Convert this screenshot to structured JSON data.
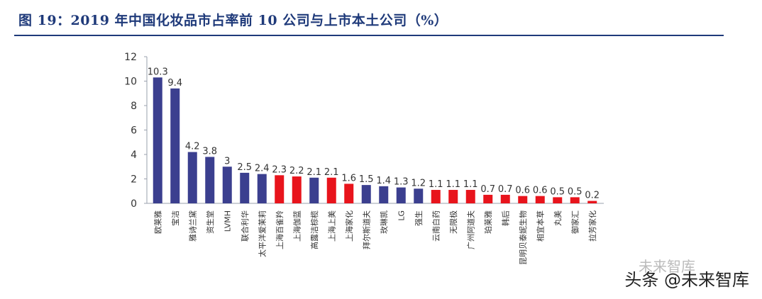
{
  "title": "图 19：2019 年中国化妆品市占率前 10 公司与上市本土公司（%）",
  "watermark": {
    "primary": "头条 @未来智库",
    "secondary": "未来智库"
  },
  "colors": {
    "navy": "#3b3f8f",
    "red": "#e8141c",
    "axis": "#9aa0ad",
    "text": "#333333"
  },
  "chart_data": {
    "type": "bar",
    "title": "",
    "xlabel": "",
    "ylabel": "",
    "ylim": [
      0,
      12
    ],
    "yticks": [
      0,
      2,
      4,
      6,
      8,
      10,
      12
    ],
    "grid": false,
    "categories": [
      "欧莱雅",
      "宝洁",
      "雅诗兰黛",
      "资生堂",
      "LVMH",
      "联合利华",
      "太平洋爱茉莉",
      "上海百雀羚",
      "上海伽蓝",
      "高露洁棕榄",
      "上海上美",
      "上海家化",
      "拜尔斯道夫",
      "玫琳凯",
      "LG",
      "强生",
      "云南白药",
      "无限极",
      "广州阿道夫",
      "珀莱雅",
      "韩后",
      "昆明贝泰妮生物",
      "相宜本草",
      "丸美",
      "御家汇",
      "拉芳家化"
    ],
    "values": [
      10.3,
      9.4,
      4.2,
      3.8,
      3,
      2.5,
      2.4,
      2.3,
      2.2,
      2.1,
      2.1,
      1.6,
      1.5,
      1.4,
      1.3,
      1.2,
      1.1,
      1.1,
      1.1,
      0.7,
      0.7,
      0.6,
      0.6,
      0.5,
      0.5,
      0.2
    ],
    "value_labels": [
      "10.3",
      "9.4",
      "4.2",
      "3.8",
      "3",
      "2.5",
      "2.4",
      "2.3",
      "2.2",
      "2.1",
      "2.1",
      "1.6",
      "1.5",
      "1.4",
      "1.3",
      "1.2",
      "1.1",
      "1.1",
      "1.1",
      "0.7",
      "0.7",
      "0.6",
      "0.6",
      "0.5",
      "0.5",
      "0.2"
    ],
    "highlight": [
      false,
      false,
      false,
      false,
      false,
      false,
      false,
      true,
      true,
      false,
      true,
      true,
      false,
      false,
      false,
      false,
      true,
      true,
      true,
      true,
      true,
      true,
      true,
      true,
      true,
      true
    ]
  }
}
